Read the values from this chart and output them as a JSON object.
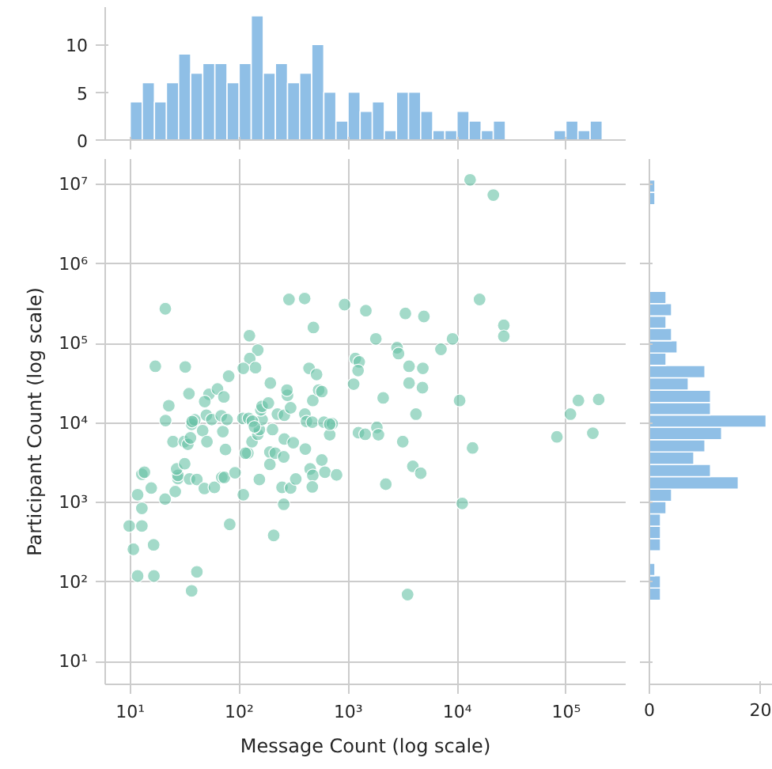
{
  "chart_data": [
    {
      "type": "histogram",
      "color": "#8fbfe6",
      "log": "x",
      "grid": false,
      "tick_labels": "y",
      "bins": [
        10.0,
        12.9,
        16.7,
        21.5,
        27.8,
        35.9,
        46.3,
        59.8,
        77.3,
        99.8,
        128.8,
        166.3,
        214.8,
        277.3,
        358.1,
        462.4,
        597.0,
        770.9,
        995.4,
        1285,
        1660,
        2143,
        2767,
        3573,
        4613,
        5957,
        7691,
        9931,
        12820,
        16560,
        21380,
        27610,
        35650,
        46030,
        59430,
        76740,
        99080,
        127900,
        165200,
        213300
      ],
      "values": [
        4,
        6,
        4,
        6,
        9,
        7,
        8,
        8,
        6,
        8,
        13,
        7,
        8,
        6,
        7,
        10,
        5,
        2,
        5,
        3,
        4,
        1,
        5,
        5,
        3,
        1,
        1,
        3,
        2,
        1,
        2,
        0,
        0,
        0,
        0,
        1,
        2,
        1,
        2
      ],
      "xlim": [
        5.9,
        350000
      ],
      "xticks": [
        {
          "value": 10,
          "label": null
        },
        {
          "value": 100,
          "label": null
        },
        {
          "value": 1000,
          "label": null
        },
        {
          "value": 10000,
          "label": null
        },
        {
          "value": 100000,
          "label": null
        }
      ],
      "ylim": [
        0,
        13.9
      ],
      "yticks": [
        0,
        5,
        10
      ]
    },
    {
      "type": "scatter",
      "color": "#66c2a5",
      "marker": "circle",
      "log": "xy",
      "grid": true,
      "xlabel": "Message Count (log scale)",
      "ylabel": "Participant Count (log scale)",
      "xlim": [
        5.9,
        350000
      ],
      "ylim": [
        5.2,
        21000000
      ],
      "xticks": [
        {
          "value": 10,
          "label": "10¹"
        },
        {
          "value": 100,
          "label": "10²"
        },
        {
          "value": 1000,
          "label": "10³"
        },
        {
          "value": 10000,
          "label": "10⁴"
        },
        {
          "value": 100000,
          "label": "10⁵"
        }
      ],
      "yticks": [
        {
          "value": 10,
          "label": "10¹"
        },
        {
          "value": 100,
          "label": "10²"
        },
        {
          "value": 1000,
          "label": "10³"
        },
        {
          "value": 10000,
          "label": "10⁴"
        },
        {
          "value": 100000,
          "label": "10⁵"
        },
        {
          "value": 1000000,
          "label": "10⁶"
        },
        {
          "value": 10000000,
          "label": "10⁷"
        }
      ],
      "x": [
        13100,
        21400,
        21,
        286,
        398,
        925,
        1450,
        3340,
        4940,
        16000,
        26700,
        26700,
        479,
        124,
        148,
        125,
        141,
        109,
        17,
        32,
        80,
        1790,
        2800,
        2890,
        7080,
        9040,
        1160,
        1260,
        1230,
        437,
        512,
        3610,
        4830,
        3610,
        4790,
        193,
        1120,
        9.8,
        10.7,
        11.7,
        16.5,
        12.8,
        12.8,
        11.7,
        16.4,
        15.6,
        12.8,
        13.5,
        20.9,
        25.9,
        27.4,
        27.4,
        26.7,
        31.6,
        35,
        40.9,
        47.9,
        59.2,
        69.2,
        73.1,
        81.8,
        91.5,
        40.9,
        36.6,
        24.7,
        31.3,
        33.8,
        35.7,
        36.6,
        21.1,
        22.6,
        34.6,
        52.8,
        63.2,
        72.3,
        48.3,
        46.2,
        50.6,
        50,
        56,
        68.4,
        70.8,
        74.8,
        77.3,
        39.1,
        37,
        109,
        120,
        114,
        131,
        148,
        153,
        162,
        158,
        162,
        185,
        108,
        122,
        132,
        138,
        202,
        191,
        191,
        214,
        256,
        259,
        247,
        256,
        207,
        153,
        296,
        330,
        313,
        224,
        259,
        296,
        277,
        274,
        404,
        400,
        414,
        468,
        473,
        535,
        572,
        447,
        473,
        468,
        572,
        611,
        781,
        676,
        598,
        714,
        676,
        1240,
        1430,
        1830,
        1890,
        2090,
        2210,
        3160,
        3910,
        4620,
        4180,
        3500,
        10500,
        11100,
        13800,
        81900,
        109000,
        129000,
        198000,
        175000
      ],
      "values": [
        11500000,
        7400000,
        275000,
        360000,
        370000,
        310000,
        260000,
        240000,
        220000,
        360000,
        170000,
        124000,
        160000,
        126000,
        83000,
        65000,
        50000,
        49000,
        52000,
        51000,
        39000,
        115000,
        89000,
        75000,
        85000,
        115000,
        65000,
        59000,
        46000,
        49000,
        41000,
        52000,
        49000,
        32000,
        28000,
        32000,
        31000,
        510,
        260,
        120,
        120,
        510,
        850,
        1260,
        295,
        1530,
        2280,
        2420,
        1110,
        1380,
        2020,
        2210,
        2660,
        3090,
        1990,
        1960,
        1510,
        1560,
        2080,
        2080,
        535,
        2380,
        135,
        78,
        5860,
        5860,
        5430,
        6530,
        9700,
        10800,
        16600,
        23500,
        23100,
        26900,
        21400,
        18700,
        8070,
        5860,
        12600,
        11100,
        12400,
        7830,
        4670,
        11100,
        11000,
        10500,
        1260,
        4200,
        4200,
        5860,
        7260,
        8330,
        11100,
        14700,
        16300,
        17900,
        11500,
        11500,
        10600,
        8990,
        8330,
        4330,
        3040,
        4200,
        3770,
        6320,
        1560,
        955,
        388,
        1960,
        1530,
        1990,
        5690,
        13000,
        12600,
        15600,
        22400,
        26100,
        4730,
        13000,
        10500,
        10300,
        19300,
        26100,
        25000,
        2660,
        2210,
        1580,
        3440,
        2420,
        2240,
        7150,
        10300,
        9840,
        9700,
        7600,
        7260,
        8850,
        7150,
        20800,
        1710,
        5860,
        2870,
        2350,
        13000,
        70,
        19300,
        980,
        4890,
        6730,
        13000,
        19300,
        19900,
        7480
      ]
    },
    {
      "type": "histogram",
      "orientation": "horizontal",
      "color": "#8fbfe6",
      "log": "y",
      "grid": false,
      "tick_labels": "x",
      "bins": [
        59.2,
        84.6,
        121.1,
        173.2,
        247.7,
        354.4,
        507,
        725.4,
        1038,
        1484,
        2123,
        3038,
        4345,
        6216,
        8892,
        12720,
        18197,
        26030,
        37239,
        53273,
        76208,
        109000,
        156000,
        223100,
        319200,
        456600,
        653100,
        934400,
        1337000,
        1912000,
        2735000,
        3913000,
        5598000,
        8008000,
        11460000
      ],
      "values": [
        2,
        2,
        1,
        0,
        2,
        2,
        2,
        3,
        4,
        16,
        11,
        8,
        10,
        13,
        21,
        11,
        11,
        7,
        10,
        3,
        5,
        4,
        3,
        4,
        3,
        0,
        0,
        0,
        0,
        0,
        0,
        0,
        1,
        1
      ],
      "xlim": [
        0,
        22.2
      ],
      "xticks": [
        0,
        20
      ],
      "ylim": [
        5.2,
        21000000
      ],
      "yticks": [
        {
          "value": 10,
          "label": null
        },
        {
          "value": 100,
          "label": null
        },
        {
          "value": 1000,
          "label": null
        },
        {
          "value": 10000,
          "label": null
        },
        {
          "value": 100000,
          "label": null
        },
        {
          "value": 1000000,
          "label": null
        },
        {
          "value": 10000000,
          "label": null
        }
      ]
    }
  ]
}
